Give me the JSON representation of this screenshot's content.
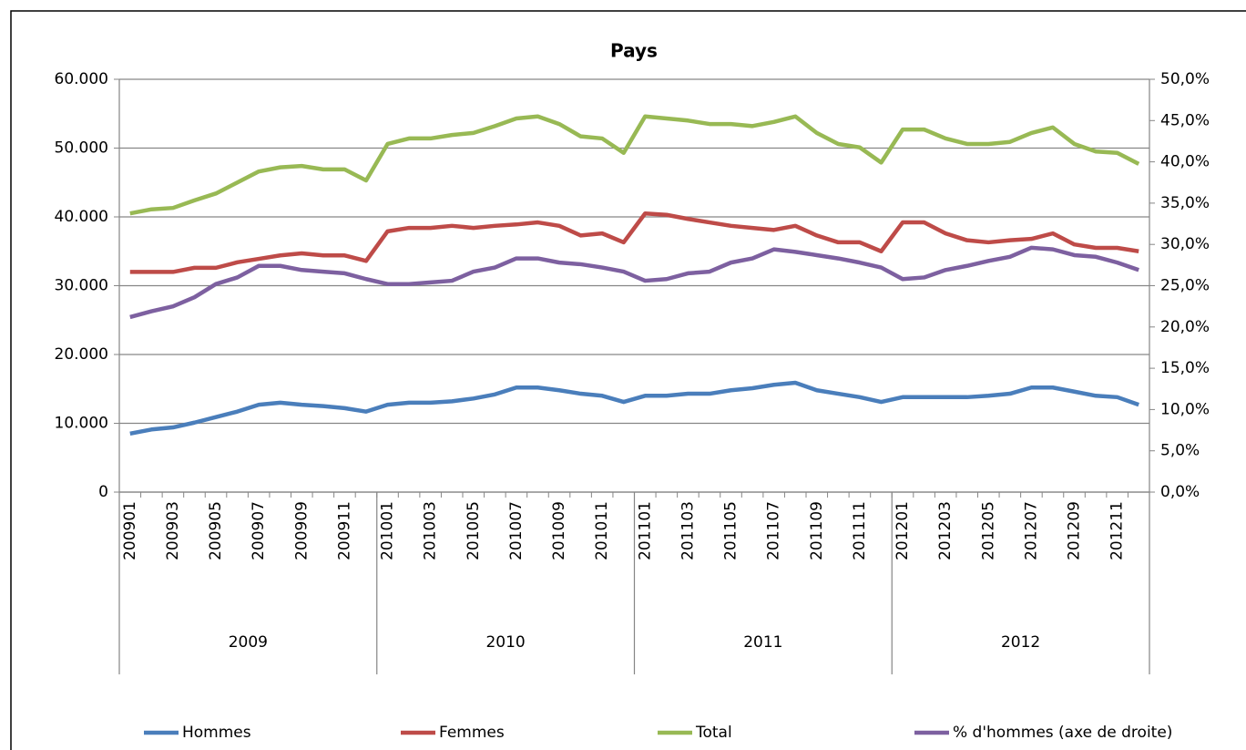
{
  "chart_data": {
    "type": "line",
    "title": "Pays",
    "categories": [
      "200901",
      null,
      "200903",
      null,
      "200905",
      null,
      "200907",
      null,
      "200909",
      null,
      "200911",
      null,
      "201001",
      null,
      "201003",
      null,
      "201005",
      null,
      "201007",
      null,
      "201009",
      null,
      "201011",
      null,
      "201101",
      null,
      "201103",
      null,
      "201105",
      null,
      "201107",
      null,
      "201109",
      null,
      "201111",
      null,
      "201201",
      null,
      "201203",
      null,
      "201205",
      null,
      "201207",
      null,
      "201209",
      null,
      "201211",
      null
    ],
    "groups": [
      "2009",
      "2010",
      "2011",
      "2012"
    ],
    "ylim": [
      0,
      60000
    ],
    "yticks": [
      {
        "value": 0,
        "label": "0"
      },
      {
        "value": 10000,
        "label": "10.000"
      },
      {
        "value": 20000,
        "label": "20.000"
      },
      {
        "value": 30000,
        "label": "30.000"
      },
      {
        "value": 40000,
        "label": "40.000"
      },
      {
        "value": 50000,
        "label": "50.000"
      },
      {
        "value": 60000,
        "label": "60.000"
      }
    ],
    "y2lim": [
      0,
      50
    ],
    "y2ticks": [
      {
        "value": 0,
        "label": "0,0%"
      },
      {
        "value": 5,
        "label": "5,0%"
      },
      {
        "value": 10,
        "label": "10,0%"
      },
      {
        "value": 15,
        "label": "15,0%"
      },
      {
        "value": 20,
        "label": "20,0%"
      },
      {
        "value": 25,
        "label": "25,0%"
      },
      {
        "value": 30,
        "label": "30,0%"
      },
      {
        "value": 35,
        "label": "35,0%"
      },
      {
        "value": 40,
        "label": "40,0%"
      },
      {
        "value": 45,
        "label": "45,0%"
      },
      {
        "value": 50,
        "label": "50,0%"
      }
    ],
    "grid": true,
    "legend": "bottom",
    "series": [
      {
        "name": "Hommes",
        "color": "#4a7ebb",
        "values": [
          8500,
          9100,
          9400,
          10100,
          10900,
          11700,
          12700,
          13000,
          12700,
          12500,
          12200,
          11700,
          12700,
          13000,
          13000,
          13200,
          13600,
          14200,
          15200,
          15200,
          14800,
          14300,
          14000,
          13100,
          14000,
          14000,
          14300,
          14300,
          14800,
          15100,
          15600,
          15900,
          14800,
          14300,
          13800,
          13100,
          13800,
          13800,
          13800,
          13800,
          14000,
          14300,
          15200,
          15200,
          14600,
          14000,
          13800,
          12700
        ]
      },
      {
        "name": "Femmes",
        "color": "#be4b48",
        "values": [
          32000,
          32000,
          32000,
          32600,
          32600,
          33400,
          33900,
          34400,
          34700,
          34400,
          34400,
          33600,
          37900,
          38400,
          38400,
          38700,
          38400,
          38700,
          38900,
          39200,
          38700,
          37300,
          37600,
          36300,
          40500,
          40300,
          39700,
          39200,
          38700,
          38400,
          38100,
          38700,
          37300,
          36300,
          36300,
          35000,
          39200,
          39200,
          37600,
          36600,
          36300,
          36600,
          36800,
          37600,
          36000,
          35500,
          35500,
          35000
        ]
      },
      {
        "name": "Total",
        "color": "#98b954",
        "values": [
          40500,
          41100,
          41300,
          42400,
          43400,
          45000,
          46600,
          47200,
          47400,
          46900,
          46900,
          45300,
          50600,
          51400,
          51400,
          51900,
          52200,
          53200,
          54300,
          54600,
          53500,
          51700,
          51400,
          49300,
          54600,
          54300,
          54000,
          53500,
          53500,
          53200,
          53800,
          54600,
          52200,
          50600,
          50100,
          47900,
          52700,
          52700,
          51400,
          50600,
          50600,
          50900,
          52200,
          53000,
          50600,
          49500,
          49300,
          47700
        ]
      },
      {
        "name": "% d'hommes (axe de droite)",
        "color": "#7d60a0",
        "axis": "y2",
        "values": [
          21.2,
          21.9,
          22.5,
          23.6,
          25.2,
          26.0,
          27.4,
          27.4,
          26.9,
          26.7,
          26.5,
          25.8,
          25.2,
          25.2,
          25.4,
          25.6,
          26.7,
          27.2,
          28.3,
          28.3,
          27.8,
          27.6,
          27.2,
          26.7,
          25.6,
          25.8,
          26.5,
          26.7,
          27.8,
          28.3,
          29.4,
          29.1,
          28.7,
          28.3,
          27.8,
          27.2,
          25.8,
          26.0,
          26.9,
          27.4,
          28.0,
          28.5,
          29.6,
          29.4,
          28.7,
          28.5,
          27.8,
          26.9
        ]
      }
    ]
  }
}
